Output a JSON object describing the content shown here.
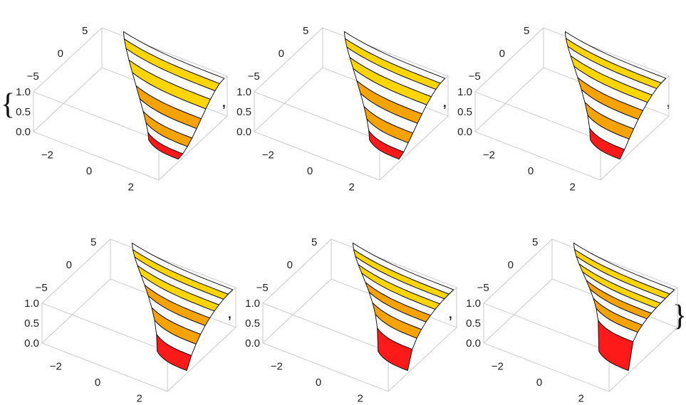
{
  "list_open": "{",
  "list_close": "}",
  "separator": ",",
  "colors": {
    "band_red": "#ff1a1a",
    "band_orange": "#f5a300",
    "band_yellow": "#ffd500",
    "band_gap": "#ffffff",
    "edge": "#000000",
    "box": "#c4c4c4"
  },
  "chart_data": [
    {
      "type": "contour-surface-3d",
      "x_ticks": [
        "−2",
        "0",
        "2"
      ],
      "y_ticks": [
        "−5",
        "0",
        "5"
      ],
      "z_ticks": [
        "0.0",
        "0.5",
        "1.0"
      ],
      "xlim": [
        -3,
        3
      ],
      "ylim": [
        -7,
        7
      ],
      "zlim": [
        0,
        1
      ],
      "bands": 10,
      "step_sharpness": 1.0
    },
    {
      "type": "contour-surface-3d",
      "x_ticks": [
        "−2",
        "0",
        "2"
      ],
      "y_ticks": [
        "−5",
        "0",
        "5"
      ],
      "z_ticks": [
        "0.0",
        "0.5",
        "1.0"
      ],
      "xlim": [
        -3,
        3
      ],
      "ylim": [
        -7,
        7
      ],
      "zlim": [
        0,
        1
      ],
      "bands": 10,
      "step_sharpness": 1.3
    },
    {
      "type": "contour-surface-3d",
      "x_ticks": [
        "−2",
        "0",
        "2"
      ],
      "y_ticks": [
        "−5",
        "0",
        "5"
      ],
      "z_ticks": [
        "0.0",
        "0.5",
        "1.0"
      ],
      "xlim": [
        -3,
        3
      ],
      "ylim": [
        -7,
        7
      ],
      "zlim": [
        0,
        1
      ],
      "bands": 10,
      "step_sharpness": 1.6
    },
    {
      "type": "contour-surface-3d",
      "x_ticks": [
        "−2",
        "0",
        "2"
      ],
      "y_ticks": [
        "−5",
        "0",
        "5"
      ],
      "z_ticks": [
        "0.0",
        "0.5",
        "1.0"
      ],
      "xlim": [
        -3,
        3
      ],
      "ylim": [
        -7,
        7
      ],
      "zlim": [
        0,
        1
      ],
      "bands": 10,
      "step_sharpness": 2.2
    },
    {
      "type": "contour-surface-3d",
      "x_ticks": [
        "−2",
        "0",
        "2"
      ],
      "y_ticks": [
        "−5",
        "0",
        "5"
      ],
      "z_ticks": [
        "0.0",
        "0.5",
        "1.0"
      ],
      "xlim": [
        -3,
        3
      ],
      "ylim": [
        -7,
        7
      ],
      "zlim": [
        0,
        1
      ],
      "bands": 10,
      "step_sharpness": 3.0
    },
    {
      "type": "contour-surface-3d",
      "x_ticks": [
        "−2",
        "0",
        "2"
      ],
      "y_ticks": [
        "−5",
        "0",
        "5"
      ],
      "z_ticks": [
        "0.0",
        "0.5",
        "1.0"
      ],
      "xlim": [
        -3,
        3
      ],
      "ylim": [
        -7,
        7
      ],
      "zlim": [
        0,
        1
      ],
      "bands": 10,
      "step_sharpness": 4.5
    }
  ]
}
